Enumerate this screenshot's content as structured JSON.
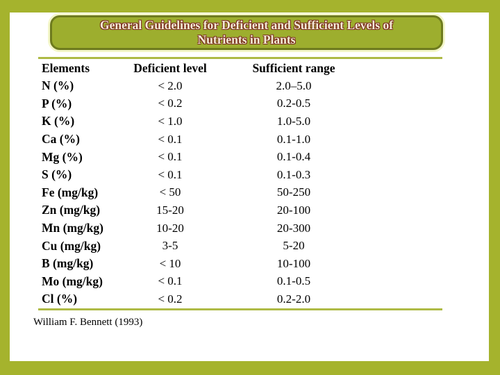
{
  "title": {
    "line1": "General Guidelines for Deficient and Sufficient Levels of",
    "line2": "Nutrients in Plants"
  },
  "table": {
    "headers": [
      "Elements",
      "Deficient level",
      "Sufficient range"
    ],
    "rows": [
      {
        "element": "N (%)",
        "deficient": "< 2.0",
        "sufficient": "2.0–5.0"
      },
      {
        "element": "P (%)",
        "deficient": "< 0.2",
        "sufficient": "0.2-0.5"
      },
      {
        "element": "K (%)",
        "deficient": "< 1.0",
        "sufficient": "1.0-5.0"
      },
      {
        "element": "Ca (%)",
        "deficient": "< 0.1",
        "sufficient": "0.1-1.0"
      },
      {
        "element": "Mg (%)",
        "deficient": "< 0.1",
        "sufficient": "0.1-0.4"
      },
      {
        "element": "S (%)",
        "deficient": "< 0.1",
        "sufficient": "0.1-0.3"
      },
      {
        "element": "Fe (mg/kg)",
        "deficient": "< 50",
        "sufficient": "50-250"
      },
      {
        "element": "Zn (mg/kg)",
        "deficient": "15-20",
        "sufficient": "20-100"
      },
      {
        "element": "Mn (mg/kg)",
        "deficient": "10-20",
        "sufficient": "20-300"
      },
      {
        "element": "Cu (mg/kg)",
        "deficient": "3-5",
        "sufficient": "5-20"
      },
      {
        "element": "B (mg/kg)",
        "deficient": "< 10",
        "sufficient": "10-100"
      },
      {
        "element": "Mo (mg/kg)",
        "deficient": "< 0.1",
        "sufficient": "0.1-0.5"
      },
      {
        "element": "Cl (%)",
        "deficient": "< 0.2",
        "sufficient": "0.2-2.0"
      }
    ]
  },
  "footer": {
    "citation": "William F. Bennett (1993)"
  },
  "colors": {
    "frame": "#a5b32d",
    "banner_fill": "#9dae2e",
    "banner_border": "#6e7b1e",
    "banner_glow": "#f3f6c8",
    "line": "#aeba45",
    "title_text": "#f3eed6",
    "title_shadow": "#7b2a22",
    "text": "#000000"
  }
}
